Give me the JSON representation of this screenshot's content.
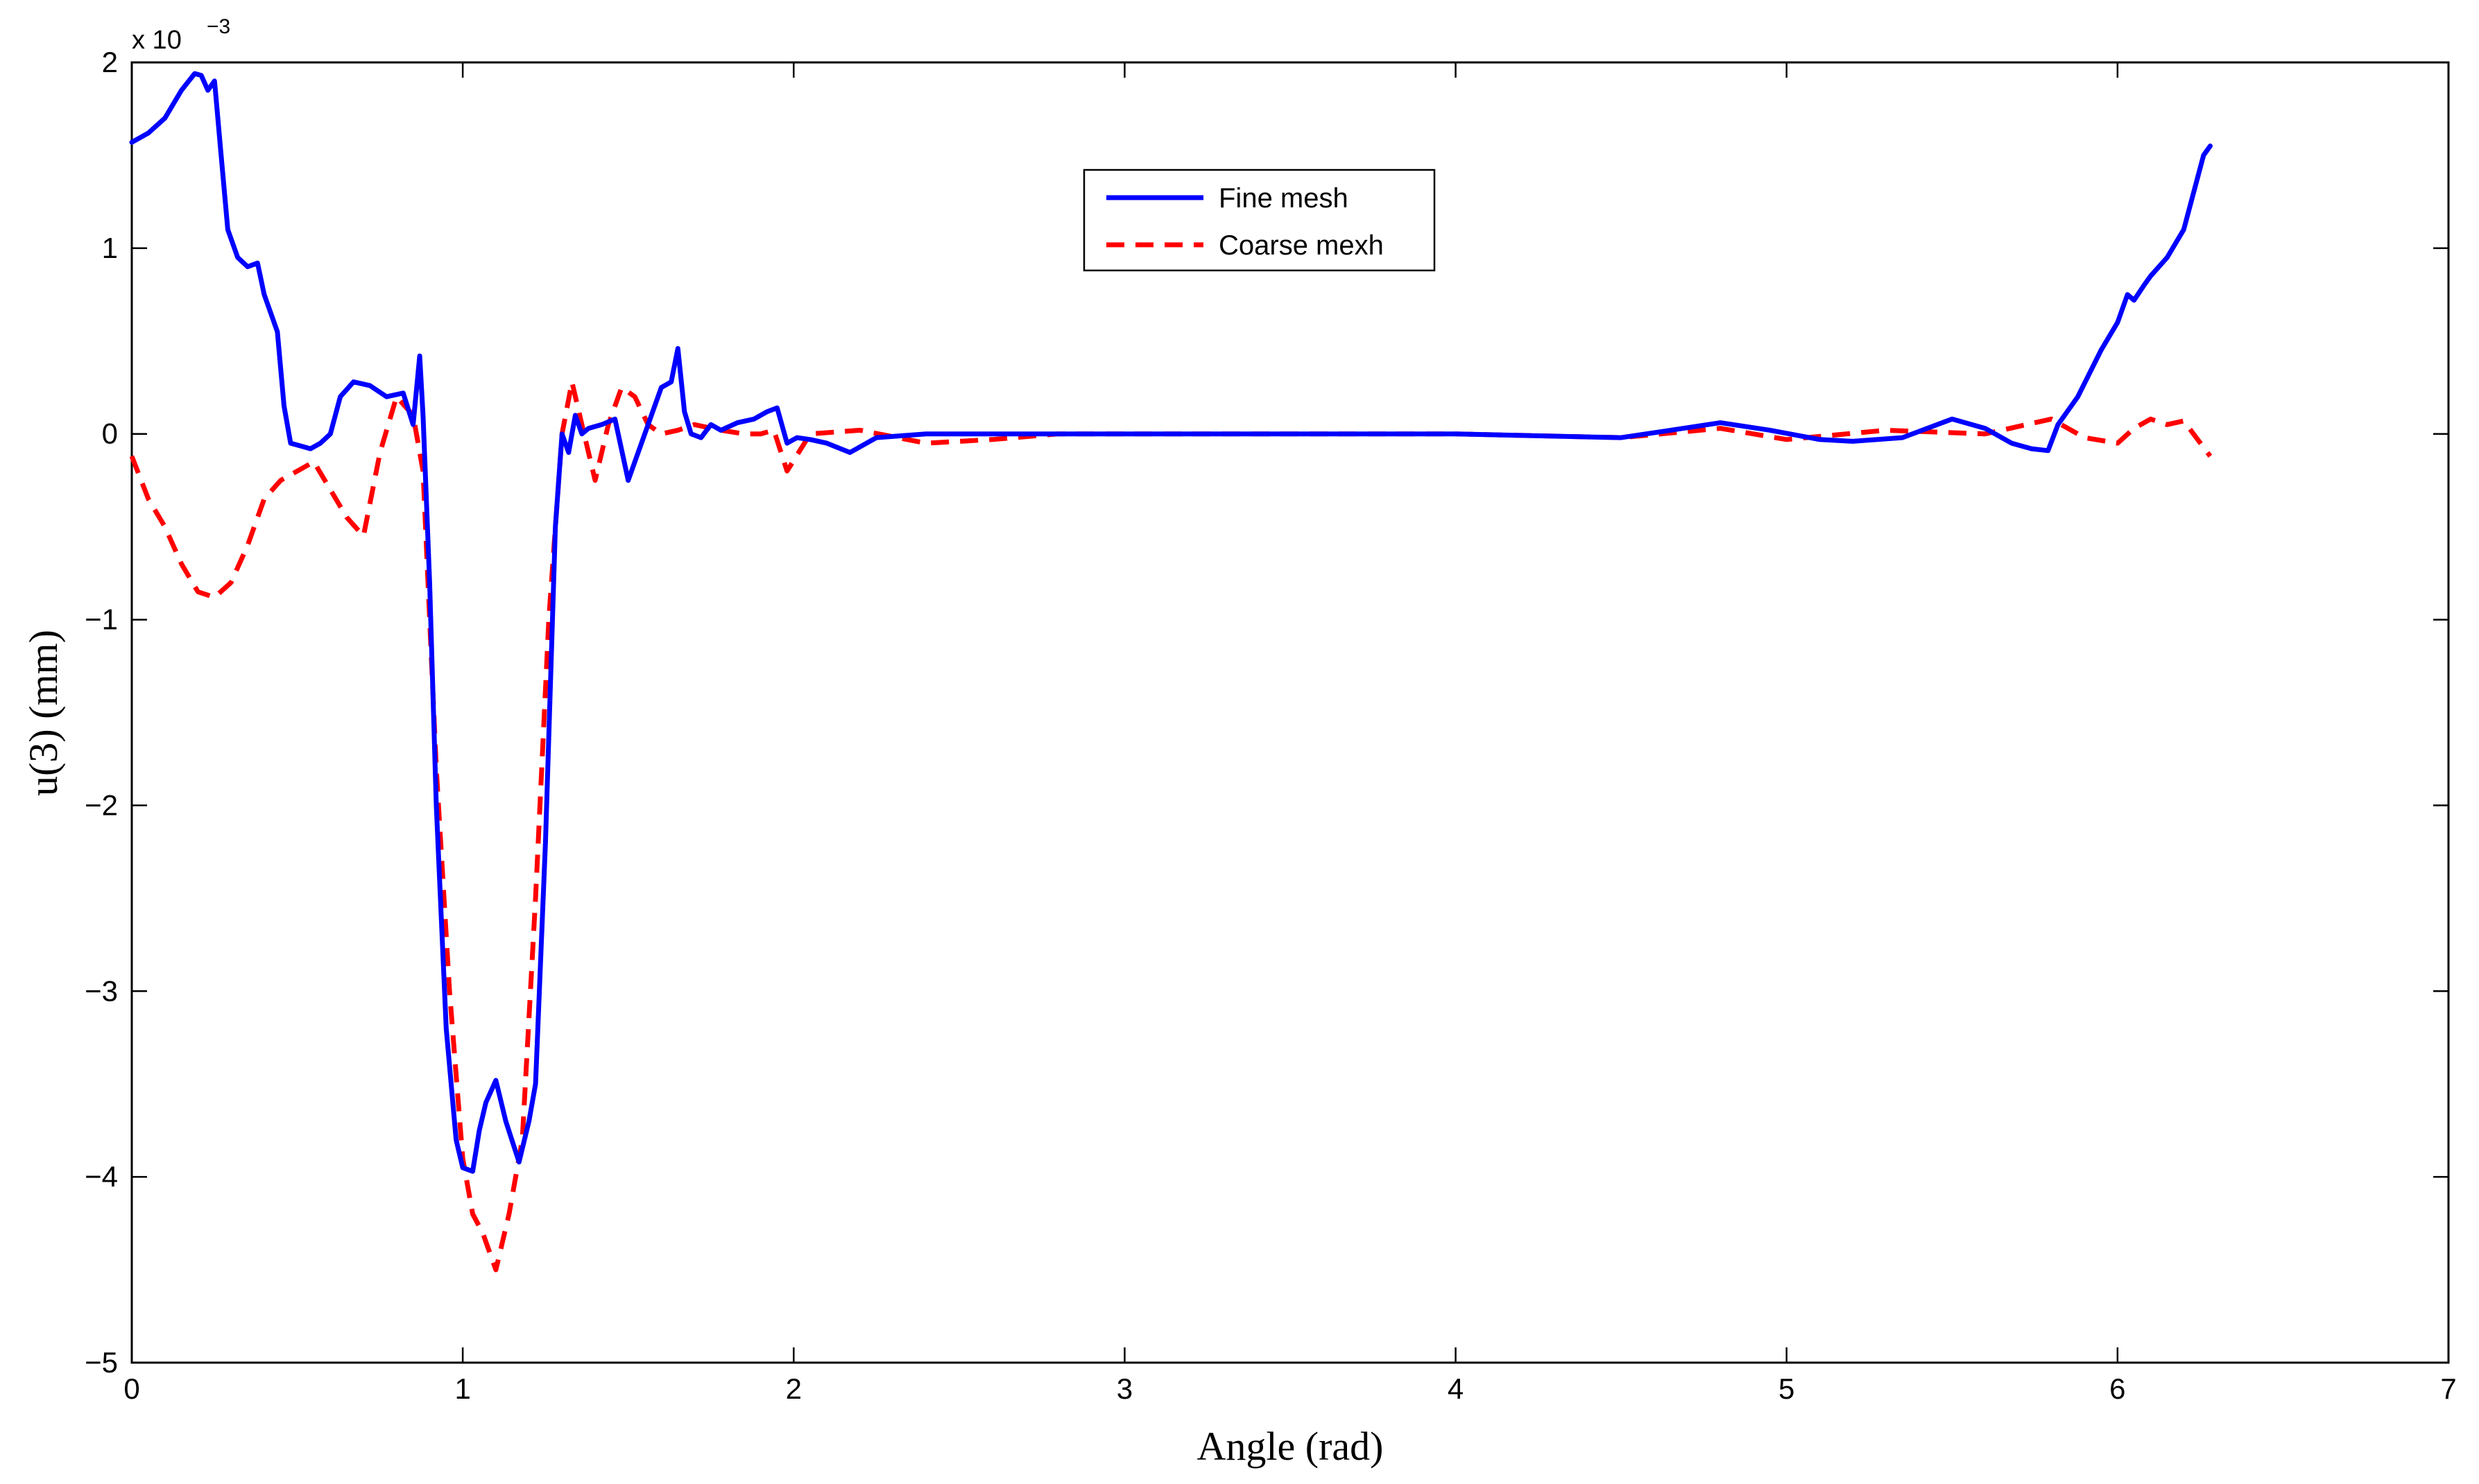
{
  "chart_data": {
    "type": "line",
    "xlabel": "Angle (rad)",
    "ylabel": "u(3) (mm)",
    "y_multiplier_label": "x 10",
    "y_multiplier_exponent": "−3",
    "xlim": [
      0,
      7
    ],
    "ylim": [
      -5,
      2
    ],
    "xticks": [
      "0",
      "1",
      "2",
      "3",
      "4",
      "5",
      "6",
      "7"
    ],
    "yticks": [
      "−5",
      "−4",
      "−3",
      "−2",
      "−1",
      "0",
      "1",
      "2"
    ],
    "grid": false,
    "legend_position": "top-center",
    "series": [
      {
        "name": "Fine mesh",
        "color": "#0000ff",
        "style": "solid",
        "x": [
          0,
          0.05,
          0.1,
          0.15,
          0.19,
          0.21,
          0.23,
          0.25,
          0.27,
          0.29,
          0.32,
          0.35,
          0.38,
          0.4,
          0.42,
          0.44,
          0.46,
          0.48,
          0.5,
          0.54,
          0.57,
          0.6,
          0.63,
          0.67,
          0.72,
          0.77,
          0.82,
          0.85,
          0.87,
          0.88,
          0.9,
          0.92,
          0.95,
          0.98,
          1.0,
          1.03,
          1.05,
          1.07,
          1.1,
          1.13,
          1.17,
          1.2,
          1.22,
          1.25,
          1.28,
          1.3,
          1.32,
          1.34,
          1.36,
          1.38,
          1.42,
          1.46,
          1.5,
          1.55,
          1.6,
          1.63,
          1.65,
          1.67,
          1.69,
          1.72,
          1.75,
          1.78,
          1.83,
          1.88,
          1.92,
          1.95,
          1.98,
          2.01,
          2.05,
          2.1,
          2.17,
          2.25,
          2.4,
          2.6,
          2.8,
          3.0,
          3.5,
          4.0,
          4.5,
          4.65,
          4.8,
          4.95,
          5.1,
          5.2,
          5.35,
          5.5,
          5.6,
          5.68,
          5.74,
          5.79,
          5.82,
          5.88,
          5.95,
          6.0,
          6.03,
          6.05,
          6.08,
          6.1,
          6.15,
          6.2,
          6.23,
          6.26,
          6.28
        ],
        "y": [
          1.57,
          1.62,
          1.7,
          1.85,
          1.94,
          1.93,
          1.85,
          1.9,
          1.5,
          1.1,
          0.95,
          0.9,
          0.92,
          0.75,
          0.65,
          0.55,
          0.15,
          -0.05,
          -0.06,
          -0.08,
          -0.05,
          0.0,
          0.2,
          0.28,
          0.26,
          0.2,
          0.22,
          0.05,
          0.42,
          0.1,
          -0.8,
          -2.0,
          -3.2,
          -3.8,
          -3.95,
          -3.97,
          -3.75,
          -3.6,
          -3.48,
          -3.7,
          -3.92,
          -3.7,
          -3.5,
          -2.2,
          -0.5,
          0.0,
          -0.1,
          0.1,
          0.0,
          0.03,
          0.05,
          0.08,
          -0.25,
          0.0,
          0.25,
          0.28,
          0.46,
          0.12,
          0.0,
          -0.02,
          0.05,
          0.02,
          0.06,
          0.08,
          0.12,
          0.14,
          -0.05,
          -0.02,
          -0.03,
          -0.05,
          -0.1,
          -0.02,
          0.0,
          0.0,
          0.0,
          0.0,
          0.0,
          0.0,
          -0.02,
          0.02,
          0.06,
          0.02,
          -0.03,
          -0.04,
          -0.02,
          0.08,
          0.03,
          -0.05,
          -0.08,
          -0.09,
          0.05,
          0.2,
          0.45,
          0.6,
          0.75,
          0.72,
          0.8,
          0.85,
          0.95,
          1.1,
          1.3,
          1.5,
          1.55
        ]
      },
      {
        "name": "Coarse mexh",
        "color": "#ff0000",
        "style": "dashed",
        "x": [
          0,
          0.05,
          0.1,
          0.15,
          0.2,
          0.25,
          0.3,
          0.35,
          0.4,
          0.45,
          0.5,
          0.55,
          0.6,
          0.65,
          0.7,
          0.75,
          0.8,
          0.85,
          0.88,
          0.92,
          0.96,
          1.0,
          1.03,
          1.06,
          1.1,
          1.14,
          1.18,
          1.22,
          1.26,
          1.3,
          1.33,
          1.36,
          1.4,
          1.44,
          1.48,
          1.52,
          1.56,
          1.6,
          1.65,
          1.7,
          1.78,
          1.85,
          1.9,
          1.94,
          1.98,
          2.05,
          2.2,
          2.4,
          2.6,
          2.8,
          3.0,
          3.5,
          4.0,
          4.5,
          4.8,
          5.0,
          5.3,
          5.6,
          5.8,
          5.9,
          6.0,
          6.05,
          6.1,
          6.15,
          6.2,
          6.28
        ],
        "y": [
          -0.12,
          -0.35,
          -0.5,
          -0.7,
          -0.85,
          -0.88,
          -0.8,
          -0.6,
          -0.35,
          -0.25,
          -0.2,
          -0.15,
          -0.3,
          -0.45,
          -0.55,
          -0.1,
          0.2,
          0.1,
          -0.2,
          -1.8,
          -3.0,
          -3.9,
          -4.2,
          -4.3,
          -4.5,
          -4.2,
          -3.8,
          -2.5,
          -1.0,
          0.0,
          0.28,
          0.05,
          -0.25,
          0.05,
          0.25,
          0.2,
          0.05,
          0.0,
          0.02,
          0.05,
          0.02,
          0.0,
          0.0,
          0.02,
          -0.2,
          0.0,
          0.02,
          -0.05,
          -0.03,
          0.0,
          0.0,
          0.0,
          0.0,
          -0.02,
          0.03,
          -0.03,
          0.02,
          0.0,
          0.08,
          -0.02,
          -0.05,
          0.03,
          0.08,
          0.05,
          0.07,
          -0.12
        ]
      }
    ]
  }
}
